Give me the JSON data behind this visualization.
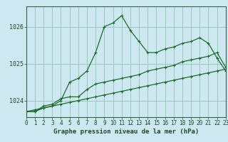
{
  "title": "Graphe pression niveau de la mer (hPa)",
  "xlabel_hours": [
    0,
    1,
    2,
    3,
    4,
    5,
    6,
    7,
    8,
    9,
    10,
    11,
    12,
    13,
    14,
    15,
    16,
    17,
    18,
    19,
    20,
    21,
    22,
    23
  ],
  "background_color": "#cde8f0",
  "grid_color": "#99ccbb",
  "line_color": "#1a6b2a",
  "ylim": [
    1023.55,
    1026.55
  ],
  "yticks": [
    1024,
    1025,
    1026
  ],
  "series": [
    [
      1023.7,
      1023.7,
      1023.8,
      1023.85,
      1024.0,
      1024.5,
      1024.6,
      1024.8,
      1025.3,
      1026.0,
      1026.1,
      1026.3,
      1025.9,
      1025.6,
      1025.3,
      1025.3,
      1025.4,
      1025.45,
      1025.55,
      1025.6,
      1025.7,
      1025.55,
      1025.15,
      1024.8
    ],
    [
      1023.7,
      1023.7,
      1023.85,
      1023.9,
      1024.05,
      1024.1,
      1024.1,
      1024.3,
      1024.45,
      1024.5,
      1024.55,
      1024.6,
      1024.65,
      1024.7,
      1024.8,
      1024.85,
      1024.9,
      1024.95,
      1025.05,
      1025.1,
      1025.15,
      1025.2,
      1025.3,
      1024.9
    ],
    [
      1023.7,
      1023.75,
      1023.8,
      1023.85,
      1023.9,
      1023.95,
      1024.0,
      1024.05,
      1024.1,
      1024.15,
      1024.2,
      1024.25,
      1024.3,
      1024.35,
      1024.4,
      1024.45,
      1024.5,
      1024.55,
      1024.6,
      1024.65,
      1024.7,
      1024.75,
      1024.8,
      1024.85
    ]
  ],
  "tick_fontsize": 5.5,
  "label_fontsize": 6.5,
  "title_fontsize": 6.5
}
